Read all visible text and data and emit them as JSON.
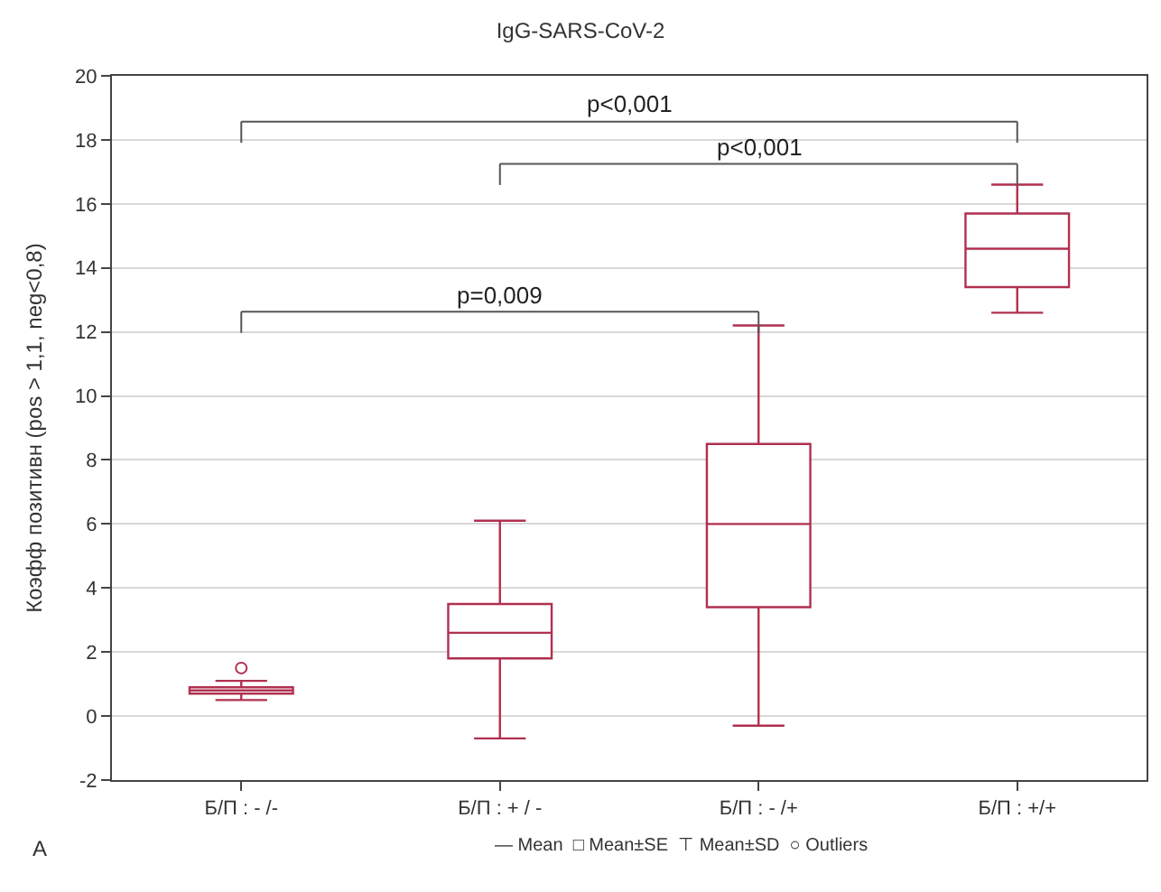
{
  "chart_data": {
    "type": "box",
    "title": "IgG-SARS-CoV-2",
    "ylabel": "Коэфф позитивн (pos > 1,1, neg<0,8)",
    "categories": [
      "Б/П : - /-",
      "Б/П : + / -",
      "Б/П : - /+",
      "Б/П : +/+"
    ],
    "series": [
      {
        "color": "#b0304f",
        "boxes": [
          {
            "low": 0.5,
            "q1": 0.7,
            "median": 0.8,
            "q3": 0.9,
            "high": 1.1
          },
          {
            "low": -0.7,
            "q1": 1.8,
            "median": 2.6,
            "q3": 3.5,
            "high": 6.1
          },
          {
            "low": -0.3,
            "q1": 3.4,
            "median": 6.0,
            "q3": 8.5,
            "high": 12.2
          },
          {
            "low": 12.6,
            "q1": 13.4,
            "median": 14.6,
            "q3": 15.7,
            "high": 16.6
          }
        ]
      },
      {
        "type": "scatter",
        "color": "#b0304f",
        "marker": "circle",
        "x": [
          "Б/П : - /-"
        ],
        "values": [
          1.5
        ]
      }
    ],
    "ylim": [
      -2,
      20
    ],
    "yticks": [
      -2,
      0,
      2,
      4,
      6,
      8,
      10,
      12,
      14,
      16,
      18,
      20
    ],
    "grid": "y",
    "annotations": [
      "p<0,001",
      "p<0,001",
      "p=0,009",
      "A",
      "— Mean  □ Mean±SE  ⊤ Mean±SD  ○ Outliers"
    ]
  }
}
